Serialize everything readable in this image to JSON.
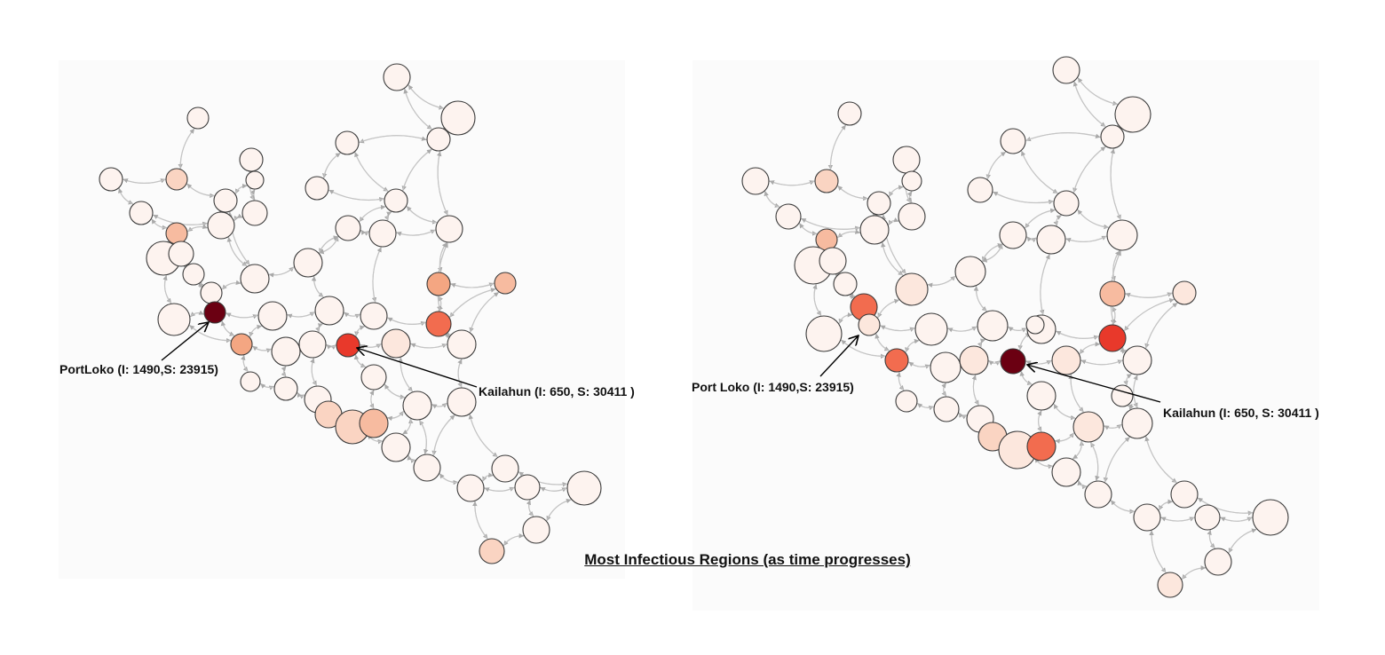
{
  "caption": "Most Infectious Regions (as time progresses)",
  "colors": {
    "edge": "#c4c4c4",
    "node_stroke": "#3a3a3a",
    "scale": [
      "#fdf3ef",
      "#fce7dd",
      "#fad4c2",
      "#f7bba0",
      "#f4a682",
      "#f26c4f",
      "#e8392b",
      "#6b0012"
    ]
  },
  "panels": [
    {
      "id": "left",
      "annotations": [
        {
          "label": "PortLoko (I: 1490,S: 23915)",
          "region": "Port Loko"
        },
        {
          "label": "Kailahun (I: 650, S: 30411 )",
          "region": "Kailahun"
        }
      ]
    },
    {
      "id": "right",
      "annotations": [
        {
          "label": "Port Loko (I: 1490,S: 23915)",
          "region": "Port Loko"
        },
        {
          "label": "Kailahun (I: 650, S: 30411 )",
          "region": "Kailahun"
        }
      ]
    }
  ]
}
